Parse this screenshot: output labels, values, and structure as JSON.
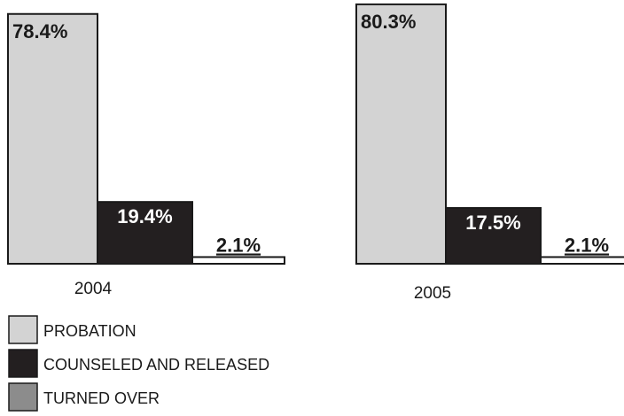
{
  "chart_data": {
    "type": "bar",
    "categories": [
      "2004",
      "2005"
    ],
    "series": [
      {
        "name": "PROBATION",
        "values": [
          78.4,
          80.3
        ],
        "labels": [
          "78.4%",
          "80.3%"
        ],
        "color": "#d3d3d3",
        "label_underline": false
      },
      {
        "name": "COUNSELED AND RELEASED",
        "values": [
          19.4,
          17.5
        ],
        "labels": [
          "19.4%",
          "17.5%"
        ],
        "color": "#231f20",
        "label_underline": false
      },
      {
        "name": "TURNED OVER",
        "values": [
          2.1,
          2.1
        ],
        "labels": [
          "2.1%",
          "2.1%"
        ],
        "color": "#ffffff",
        "label_underline": true
      }
    ],
    "legend": {
      "placement": "bottom-left",
      "items": [
        {
          "label": "PROBATION",
          "color": "#d3d3d3"
        },
        {
          "label": "COUNSELED AND RELEASED",
          "color": "#231f20"
        },
        {
          "label": "TURNED OVER",
          "color": "#8c8c8c"
        }
      ]
    },
    "grid": false,
    "axes_visible": false
  }
}
